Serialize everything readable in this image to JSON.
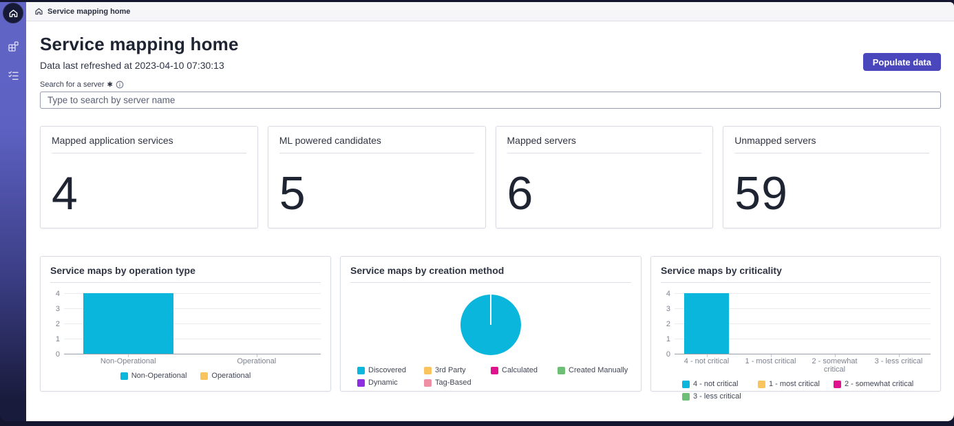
{
  "breadcrumb": {
    "label": "Service mapping home"
  },
  "sidebar": {
    "icons": [
      "home-icon",
      "workspaces-grid-icon",
      "task-list-icon"
    ]
  },
  "page": {
    "title": "Service mapping home",
    "refreshed": "Data last refreshed at 2023-04-10 07:30:13",
    "populate_button": "Populate data"
  },
  "search": {
    "label": "Search for a server",
    "required_marker": "✱",
    "placeholder": "Type to search by server name"
  },
  "stats": [
    {
      "label": "Mapped application services",
      "value": "4"
    },
    {
      "label": "ML powered candidates",
      "value": "5"
    },
    {
      "label": "Mapped servers",
      "value": "6"
    },
    {
      "label": "Unmapped servers",
      "value": "59"
    }
  ],
  "colors": {
    "accent_button": "#4a46bb",
    "chart_cyan": "#0bb6dc",
    "chart_yellow": "#f9c45d",
    "chart_magenta": "#e0128e",
    "chart_green": "#6cbf74",
    "chart_purple": "#8d2ee0",
    "chart_rose": "#ef8fa4"
  },
  "chart_data": [
    {
      "type": "bar",
      "title": "Service maps by operation type",
      "categories": [
        "Non-Operational",
        "Operational"
      ],
      "values": [
        4,
        0
      ],
      "colors": [
        "#0bb6dc",
        "#f9c45d"
      ],
      "ylim": [
        0,
        4
      ],
      "yticks": [
        0,
        1,
        2,
        3,
        4
      ],
      "grid": true,
      "legend_position": "bottom",
      "legend": [
        {
          "label": "Non-Operational",
          "color": "#0bb6dc"
        },
        {
          "label": "Operational",
          "color": "#f9c45d"
        }
      ],
      "legend_cols": 2,
      "legend_col_width": 0
    },
    {
      "type": "pie",
      "title": "Service maps by creation method",
      "slices": [
        {
          "label": "Discovered",
          "percent": 100,
          "color": "#0bb6dc"
        }
      ],
      "legend_position": "bottom",
      "legend": [
        {
          "label": "Discovered",
          "color": "#0bb6dc"
        },
        {
          "label": "3rd Party",
          "color": "#f9c45d"
        },
        {
          "label": "Calculated",
          "color": "#e0128e"
        },
        {
          "label": "Created Manually",
          "color": "#6cbf74"
        },
        {
          "label": "Dynamic",
          "color": "#8d2ee0"
        },
        {
          "label": "Tag-Based",
          "color": "#ef8fa4"
        }
      ],
      "legend_cols": 4,
      "legend_col_width": 97
    },
    {
      "type": "bar",
      "title": "Service maps by criticality",
      "categories": [
        "4 - not critical",
        "1 - most critical",
        "2 - somewhat critical",
        "3 - less critical"
      ],
      "values": [
        4,
        0,
        0,
        0
      ],
      "colors": [
        "#0bb6dc",
        "#f9c45d",
        "#e0128e",
        "#6cbf74"
      ],
      "ylim": [
        0,
        4
      ],
      "yticks": [
        0,
        1,
        2,
        3,
        4
      ],
      "grid": true,
      "legend_position": "bottom",
      "legend": [
        {
          "label": "4 - not critical",
          "color": "#0bb6dc"
        },
        {
          "label": "1 - most critical",
          "color": "#f9c45d"
        },
        {
          "label": "2 - somewhat critical",
          "color": "#e0128e"
        },
        {
          "label": "3 - less critical",
          "color": "#6cbf74"
        }
      ],
      "legend_cols": 3,
      "legend_col_width": 110
    }
  ]
}
